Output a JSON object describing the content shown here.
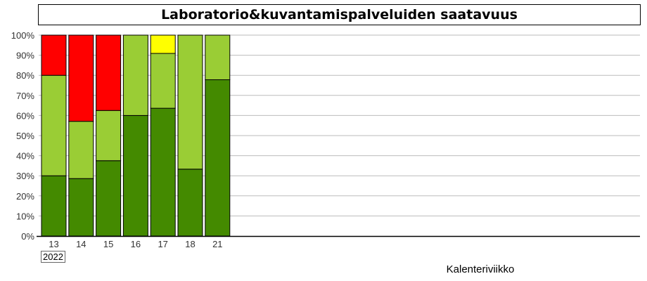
{
  "chart_data": {
    "type": "bar",
    "stacked": true,
    "title": "Laboratorio&kuvantamispalveluiden saatavuus",
    "xlabel": "Kalenteriviikko",
    "ylabel": "",
    "year_label": "2022",
    "categories": [
      "13",
      "14",
      "15",
      "16",
      "17",
      "18",
      "21"
    ],
    "ylim": [
      0,
      100
    ],
    "yticks": [
      "0%",
      "10%",
      "20%",
      "30%",
      "40%",
      "50%",
      "60%",
      "70%",
      "80%",
      "90%",
      "100%"
    ],
    "grid": true,
    "series": [
      {
        "color": "#448a00",
        "values": [
          30,
          28.6,
          37.5,
          60,
          63.6,
          33.3,
          77.8
        ]
      },
      {
        "color": "#9acd35",
        "values": [
          50,
          28.5,
          25,
          40,
          27.3,
          66.7,
          22.2
        ]
      },
      {
        "color": "#ffff00",
        "values": [
          0,
          0,
          0,
          0,
          9.1,
          0,
          0
        ]
      },
      {
        "color": "#ff0000",
        "values": [
          20,
          42.9,
          37.5,
          0,
          0,
          0,
          0
        ]
      }
    ]
  }
}
